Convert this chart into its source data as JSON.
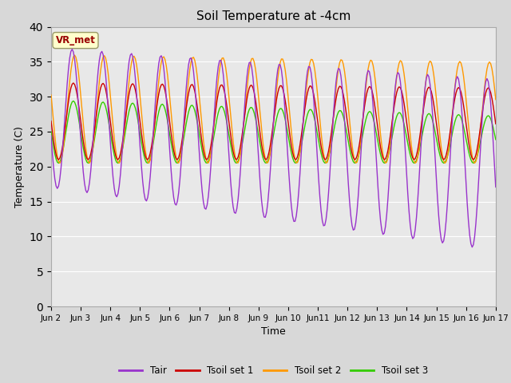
{
  "title": "Soil Temperature at -4cm",
  "xlabel": "Time",
  "ylabel": "Temperature (C)",
  "xlim_days": [
    0,
    15
  ],
  "ylim": [
    0,
    40
  ],
  "yticks": [
    0,
    5,
    10,
    15,
    20,
    25,
    30,
    35,
    40
  ],
  "fig_bg_color": "#d8d8d8",
  "plot_bg_color": "#e8e8e8",
  "legend_labels": [
    "Tair",
    "Tsoil set 1",
    "Tsoil set 2",
    "Tsoil set 3"
  ],
  "legend_colors": [
    "#9933cc",
    "#cc0000",
    "#ff9900",
    "#33cc00"
  ],
  "vr_met_label": "VR_met",
  "vr_met_color": "#990000",
  "vr_met_bg": "#ffffcc",
  "x_tick_labels": [
    "Jun 2",
    "Jun 3",
    "Jun 4",
    "Jun 5",
    "Jun 6",
    "Jun 7",
    "Jun 8",
    "Jun 9",
    "Jun 10",
    "Jun11",
    "Jun 12",
    "Jun 13",
    "Jun 14",
    "Jun 15",
    "Jun 16",
    "Jun 17"
  ],
  "x_tick_positions": [
    0,
    1,
    2,
    3,
    4,
    5,
    6,
    7,
    8,
    9,
    10,
    11,
    12,
    13,
    14,
    15
  ]
}
